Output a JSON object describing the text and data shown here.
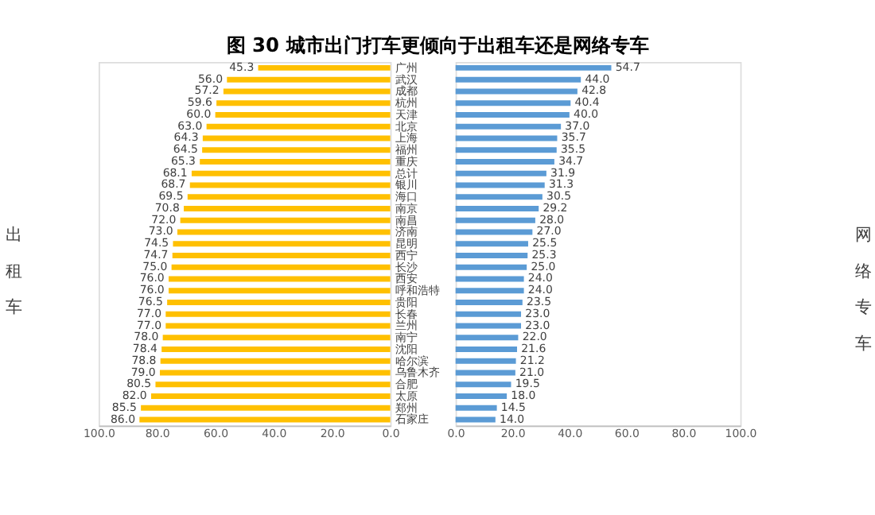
{
  "chart_data": [
    {
      "type": "bar",
      "orientation": "horizontal",
      "title": "图 30 城市出门打车更倾向于出租车还是网络专车",
      "ylabel": "出租车",
      "categories": [
        "广州",
        "武汉",
        "成都",
        "杭州",
        "天津",
        "北京",
        "上海",
        "福州",
        "重庆",
        "总计",
        "银川",
        "海口",
        "南京",
        "南昌",
        "济南",
        "昆明",
        "西宁",
        "长沙",
        "西安",
        "呼和浩特",
        "贵阳",
        "长春",
        "兰州",
        "南宁",
        "沈阳",
        "哈尔滨",
        "乌鲁木齐",
        "合肥",
        "太原",
        "郑州",
        "石家庄"
      ],
      "values": [
        45.3,
        56.0,
        57.2,
        59.6,
        60.0,
        63.0,
        64.3,
        64.5,
        65.3,
        68.1,
        68.7,
        69.5,
        70.8,
        72.0,
        73.0,
        74.5,
        74.7,
        75.0,
        76.0,
        76.0,
        76.5,
        77.0,
        77.0,
        78.0,
        78.4,
        78.8,
        79.0,
        80.5,
        82.0,
        85.5,
        86.0
      ],
      "value_labels": [
        "45.3",
        "56.0",
        "57.2",
        "59.6",
        "60.0",
        "63.0",
        "64.3",
        "64.5",
        "65.3",
        "68.1",
        "68.7",
        "69.5",
        "70.8",
        "72.0",
        "73.0",
        "74.5",
        "74.7",
        "75.0",
        "76.0",
        "76.0",
        "76.5",
        "77.0",
        "77.0",
        "78.0",
        "78.4",
        "78.8",
        "79.0",
        "80.5",
        "82.0",
        "85.5",
        "86.0"
      ],
      "color": "#ffc000",
      "xlim": [
        100,
        0
      ],
      "xticks": [
        {
          "value": 100,
          "label": "100.0"
        },
        {
          "value": 80,
          "label": "80.0"
        },
        {
          "value": 60,
          "label": "60.0"
        },
        {
          "value": 40,
          "label": "40.0"
        },
        {
          "value": 20,
          "label": "20.0"
        },
        {
          "value": 0,
          "label": "0.0"
        }
      ]
    },
    {
      "type": "bar",
      "orientation": "horizontal",
      "ylabel": "网络专车",
      "categories": [
        null,
        null,
        null,
        null,
        null,
        null,
        null,
        null,
        null,
        null,
        null,
        null,
        null,
        null,
        null,
        null,
        null,
        null,
        null,
        null,
        null,
        null,
        null,
        null,
        null,
        null,
        null,
        null,
        null,
        null,
        null
      ],
      "tick_labels": "x",
      "values": [
        54.7,
        44.0,
        42.8,
        40.4,
        40.0,
        37.0,
        35.7,
        35.5,
        34.7,
        31.9,
        31.3,
        30.5,
        29.2,
        28.0,
        27.0,
        25.5,
        25.3,
        25.0,
        24.0,
        24.0,
        23.5,
        23.0,
        23.0,
        22.0,
        21.6,
        21.2,
        21.0,
        19.5,
        18.0,
        14.5,
        14.0
      ],
      "value_labels": [
        "54.7",
        "44.0",
        "42.8",
        "40.4",
        "40.0",
        "37.0",
        "35.7",
        "35.5",
        "34.7",
        "31.9",
        "31.3",
        "30.5",
        "29.2",
        "28.0",
        "27.0",
        "25.5",
        "25.3",
        "25.0",
        "24.0",
        "24.0",
        "23.5",
        "23.0",
        "23.0",
        "22.0",
        "21.6",
        "21.2",
        "21.0",
        "19.5",
        "18.0",
        "14.5",
        "14.0"
      ],
      "color": "#5b9bd5",
      "xlim": [
        0,
        100
      ],
      "xticks": [
        {
          "value": 0,
          "label": "0.0"
        },
        {
          "value": 20,
          "label": "20.0"
        },
        {
          "value": 40,
          "label": "40.0"
        },
        {
          "value": 60,
          "label": "60.0"
        },
        {
          "value": 80,
          "label": "80.0"
        },
        {
          "value": 100,
          "label": "100.0"
        }
      ]
    }
  ]
}
